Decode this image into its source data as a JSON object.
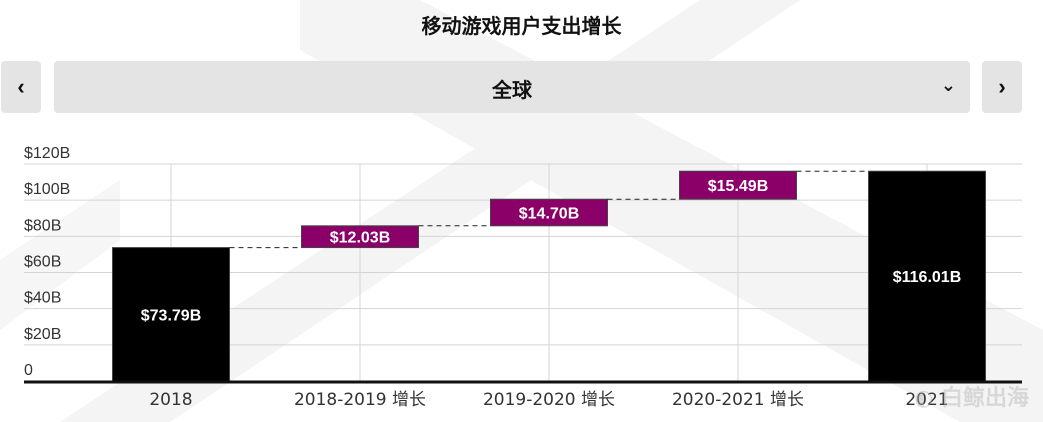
{
  "header": {
    "title": "移动游戏用户支出增长"
  },
  "selector": {
    "prev_icon": "chevron-left",
    "next_icon": "chevron-right",
    "dropdown_icon": "chevron-down",
    "value": "全球"
  },
  "watermark": "白鲸出海",
  "chart_data": {
    "type": "waterfall",
    "title": "移动游戏用户支出增长",
    "categories": [
      "2018",
      "2018-2019 增长",
      "2019-2020 增长",
      "2020-2021 增长",
      "2021"
    ],
    "bars": [
      {
        "kind": "total",
        "start": 0,
        "end": 73.79,
        "label": "$73.79B"
      },
      {
        "kind": "increase",
        "start": 73.79,
        "end": 85.82,
        "label": "$12.03B"
      },
      {
        "kind": "increase",
        "start": 85.82,
        "end": 100.52,
        "label": "$14.70B"
      },
      {
        "kind": "increase",
        "start": 100.52,
        "end": 116.01,
        "label": "$15.49B"
      },
      {
        "kind": "total",
        "start": 0,
        "end": 116.01,
        "label": "$116.01B"
      }
    ],
    "yticks": [
      0,
      20,
      40,
      60,
      80,
      100,
      120
    ],
    "ytick_labels": [
      "0",
      "$20B",
      "$40B",
      "$60B",
      "$80B",
      "$100B",
      "$120B"
    ],
    "ylim": [
      0,
      120
    ],
    "grid": true,
    "colors": {
      "total": "#000000",
      "increase": "#8b0068"
    }
  }
}
